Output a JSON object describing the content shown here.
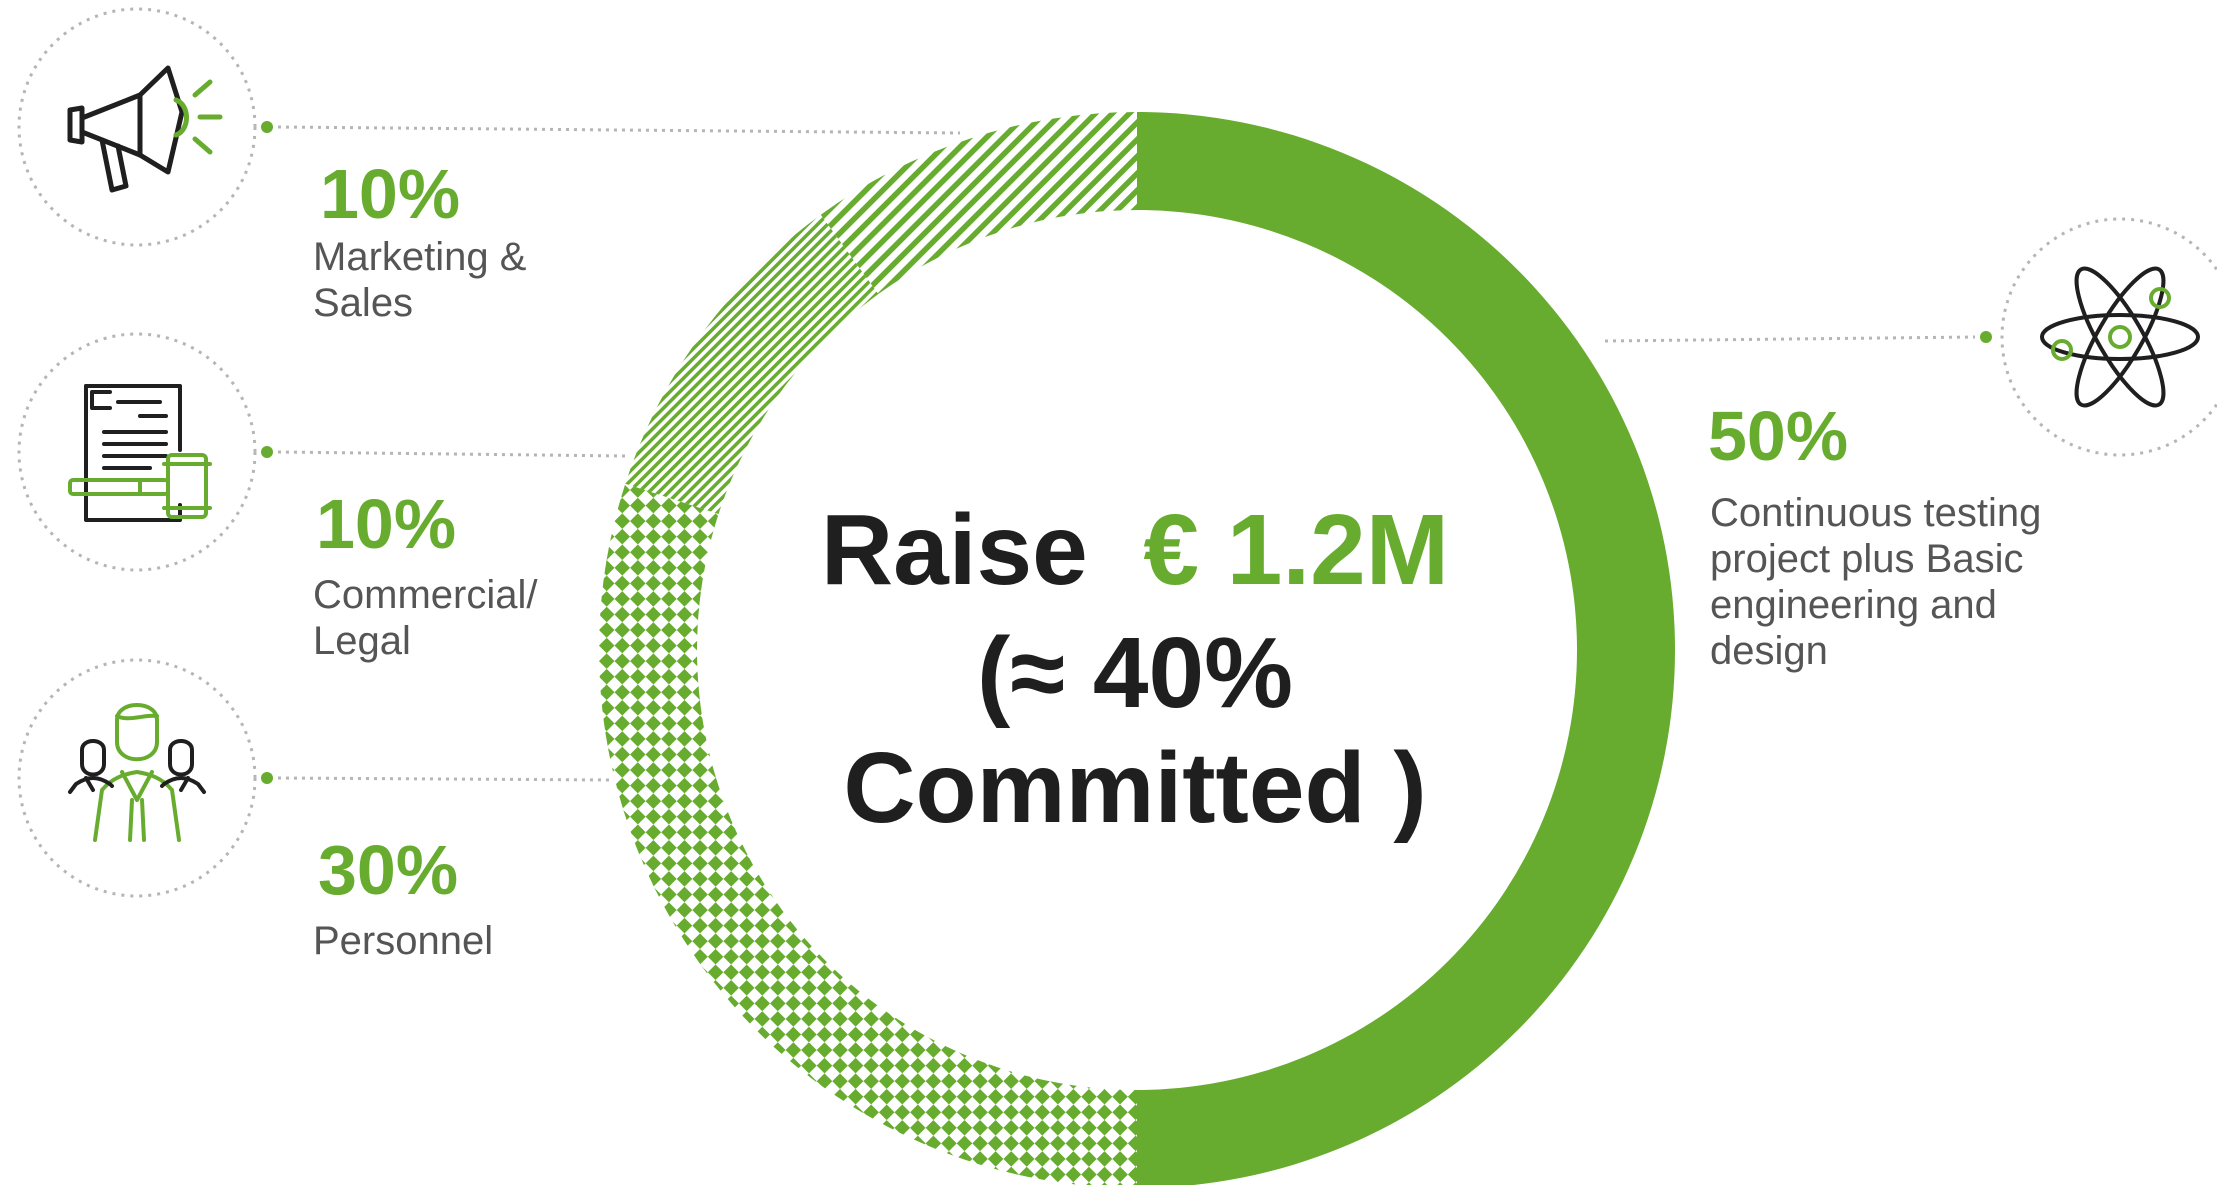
{
  "colors": {
    "accent": "#67ac2e",
    "text_dark": "#1f1f1f",
    "text_gray": "#555555",
    "dot_gray": "#b5b5b5"
  },
  "center": {
    "line1_prefix": "Raise",
    "line1_amount": "€ 1.2M",
    "line2": "(≈ 40%",
    "line3": "Committed )"
  },
  "chart_data": {
    "type": "pie",
    "variant": "donut",
    "categories": [
      "Continuous testing project plus Basic engineering and design",
      "Personnel",
      "Commercial/ Legal",
      "Marketing & Sales"
    ],
    "values": [
      50,
      30,
      10,
      10
    ],
    "fills": [
      "solid",
      "checkered",
      "fine-diagonal",
      "coarse-diagonal"
    ],
    "colors": [
      "#67ac2e",
      "#67ac2e",
      "#67ac2e",
      "#67ac2e"
    ]
  },
  "callouts": [
    {
      "key": "marketing",
      "percent": "10%",
      "label_lines": [
        "Marketing &",
        "Sales"
      ],
      "icon": "megaphone-icon"
    },
    {
      "key": "commercial",
      "percent": "10%",
      "label_lines": [
        "Commercial/",
        "Legal"
      ],
      "icon": "legal-document-gavel-icon"
    },
    {
      "key": "personnel",
      "percent": "30%",
      "label_lines": [
        "Personnel"
      ],
      "icon": "team-people-icon"
    },
    {
      "key": "testing",
      "percent": "50%",
      "label_lines": [
        "Continuous testing",
        "project plus Basic",
        "engineering and",
        "design"
      ],
      "icon": "atom-icon"
    }
  ]
}
